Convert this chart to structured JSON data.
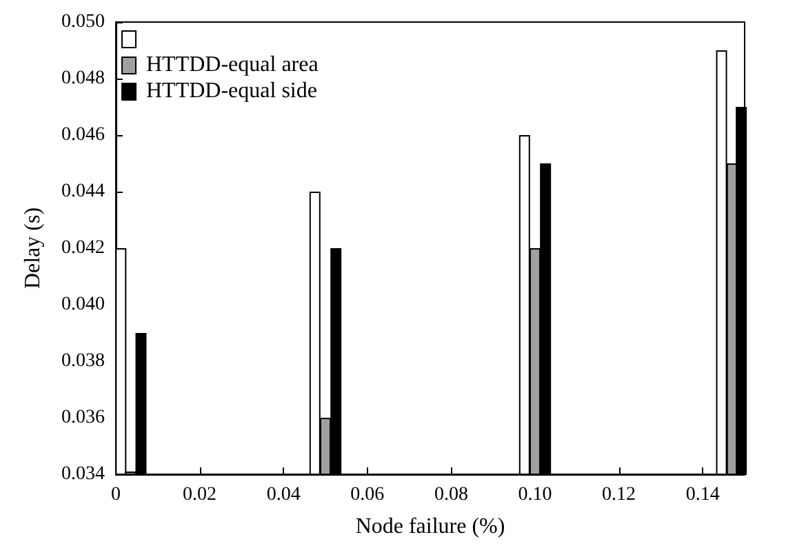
{
  "chart_data": {
    "type": "bar",
    "xlabel": "Node failure (%)",
    "ylabel": "Delay (s)",
    "xlim": [
      0,
      0.15
    ],
    "xticks": [
      0,
      0.02,
      0.04,
      0.06,
      0.08,
      {
        "value": 0.1,
        "label": "0.10"
      },
      0.12,
      0.14
    ],
    "ylim": [
      0.034,
      0.05
    ],
    "yticks": [
      0.034,
      0.036,
      0.038,
      {
        "value": 0.04,
        "label": "0.040"
      },
      0.042,
      0.044,
      0.046,
      0.048,
      {
        "value": 0.05,
        "label": "0.050"
      }
    ],
    "legend": "top left",
    "grid": false,
    "series": [
      {
        "color": "#ffffff",
        "x": [
          0.0012,
          0.0475,
          0.0975,
          0.1445
        ],
        "values": [
          0.042,
          0.044,
          0.046,
          0.049
        ]
      },
      {
        "name": "HTTDD-equal area",
        "color": "#a0a0a0",
        "x": [
          0.0035,
          0.05,
          0.1,
          0.147
        ],
        "values": [
          0.0341,
          0.036,
          0.042,
          0.045
        ]
      },
      {
        "name": "HTTDD-equal side",
        "color": "#000000",
        "x": [
          0.006,
          0.0525,
          0.1025,
          0.1492
        ],
        "values": [
          0.039,
          0.042,
          0.045,
          0.047
        ]
      }
    ]
  }
}
